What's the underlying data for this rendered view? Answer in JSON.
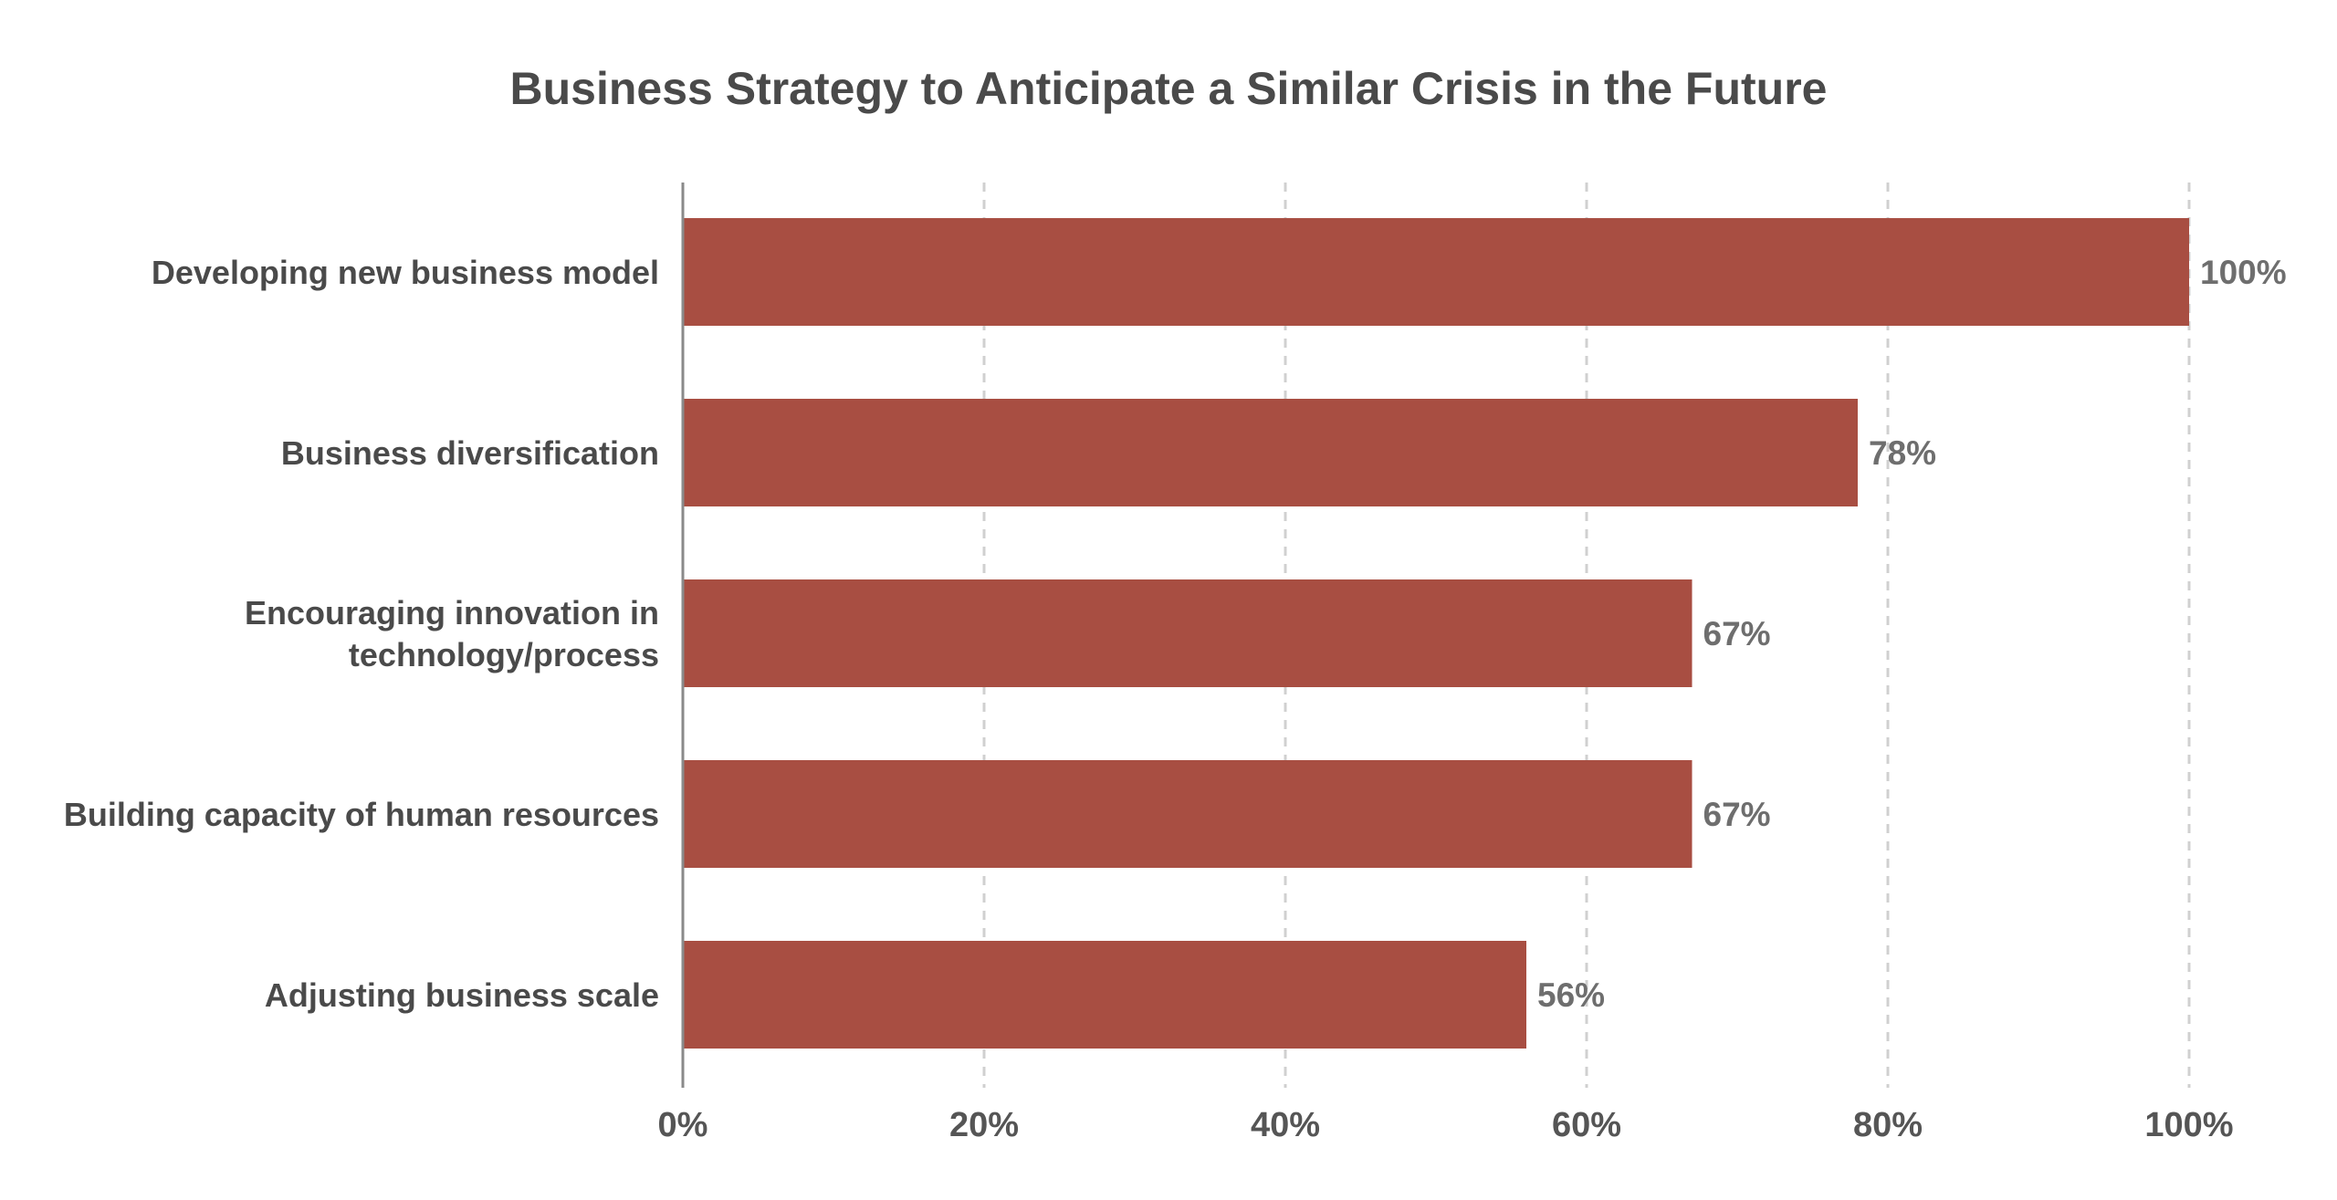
{
  "chart_data": {
    "type": "bar",
    "orientation": "horizontal",
    "title": "Business Strategy to Anticipate a Similar Crisis in the Future",
    "categories": [
      [
        "Developing new business model"
      ],
      [
        "Business diversification"
      ],
      [
        "Encouraging innovation in",
        "technology/process"
      ],
      [
        "Building capacity of human resources"
      ],
      [
        "Adjusting business scale"
      ]
    ],
    "values": [
      100,
      78,
      67,
      67,
      56
    ],
    "value_labels": [
      "100%",
      "78%",
      "67%",
      "67%",
      "56%"
    ],
    "xlim": [
      0,
      100
    ],
    "xticks": [
      0,
      20,
      40,
      60,
      80,
      100
    ],
    "xtick_labels": [
      "0%",
      "20%",
      "40%",
      "60%",
      "80%",
      "100%"
    ],
    "xlabel": "",
    "ylabel": "",
    "grid": "vertical dashed",
    "bar_color": "#a84e42",
    "axis_color": "#8a8a8a",
    "grid_color": "#d0d0d0",
    "text_color": "#4a4a4a",
    "value_label_color": "#6e6e6e"
  }
}
